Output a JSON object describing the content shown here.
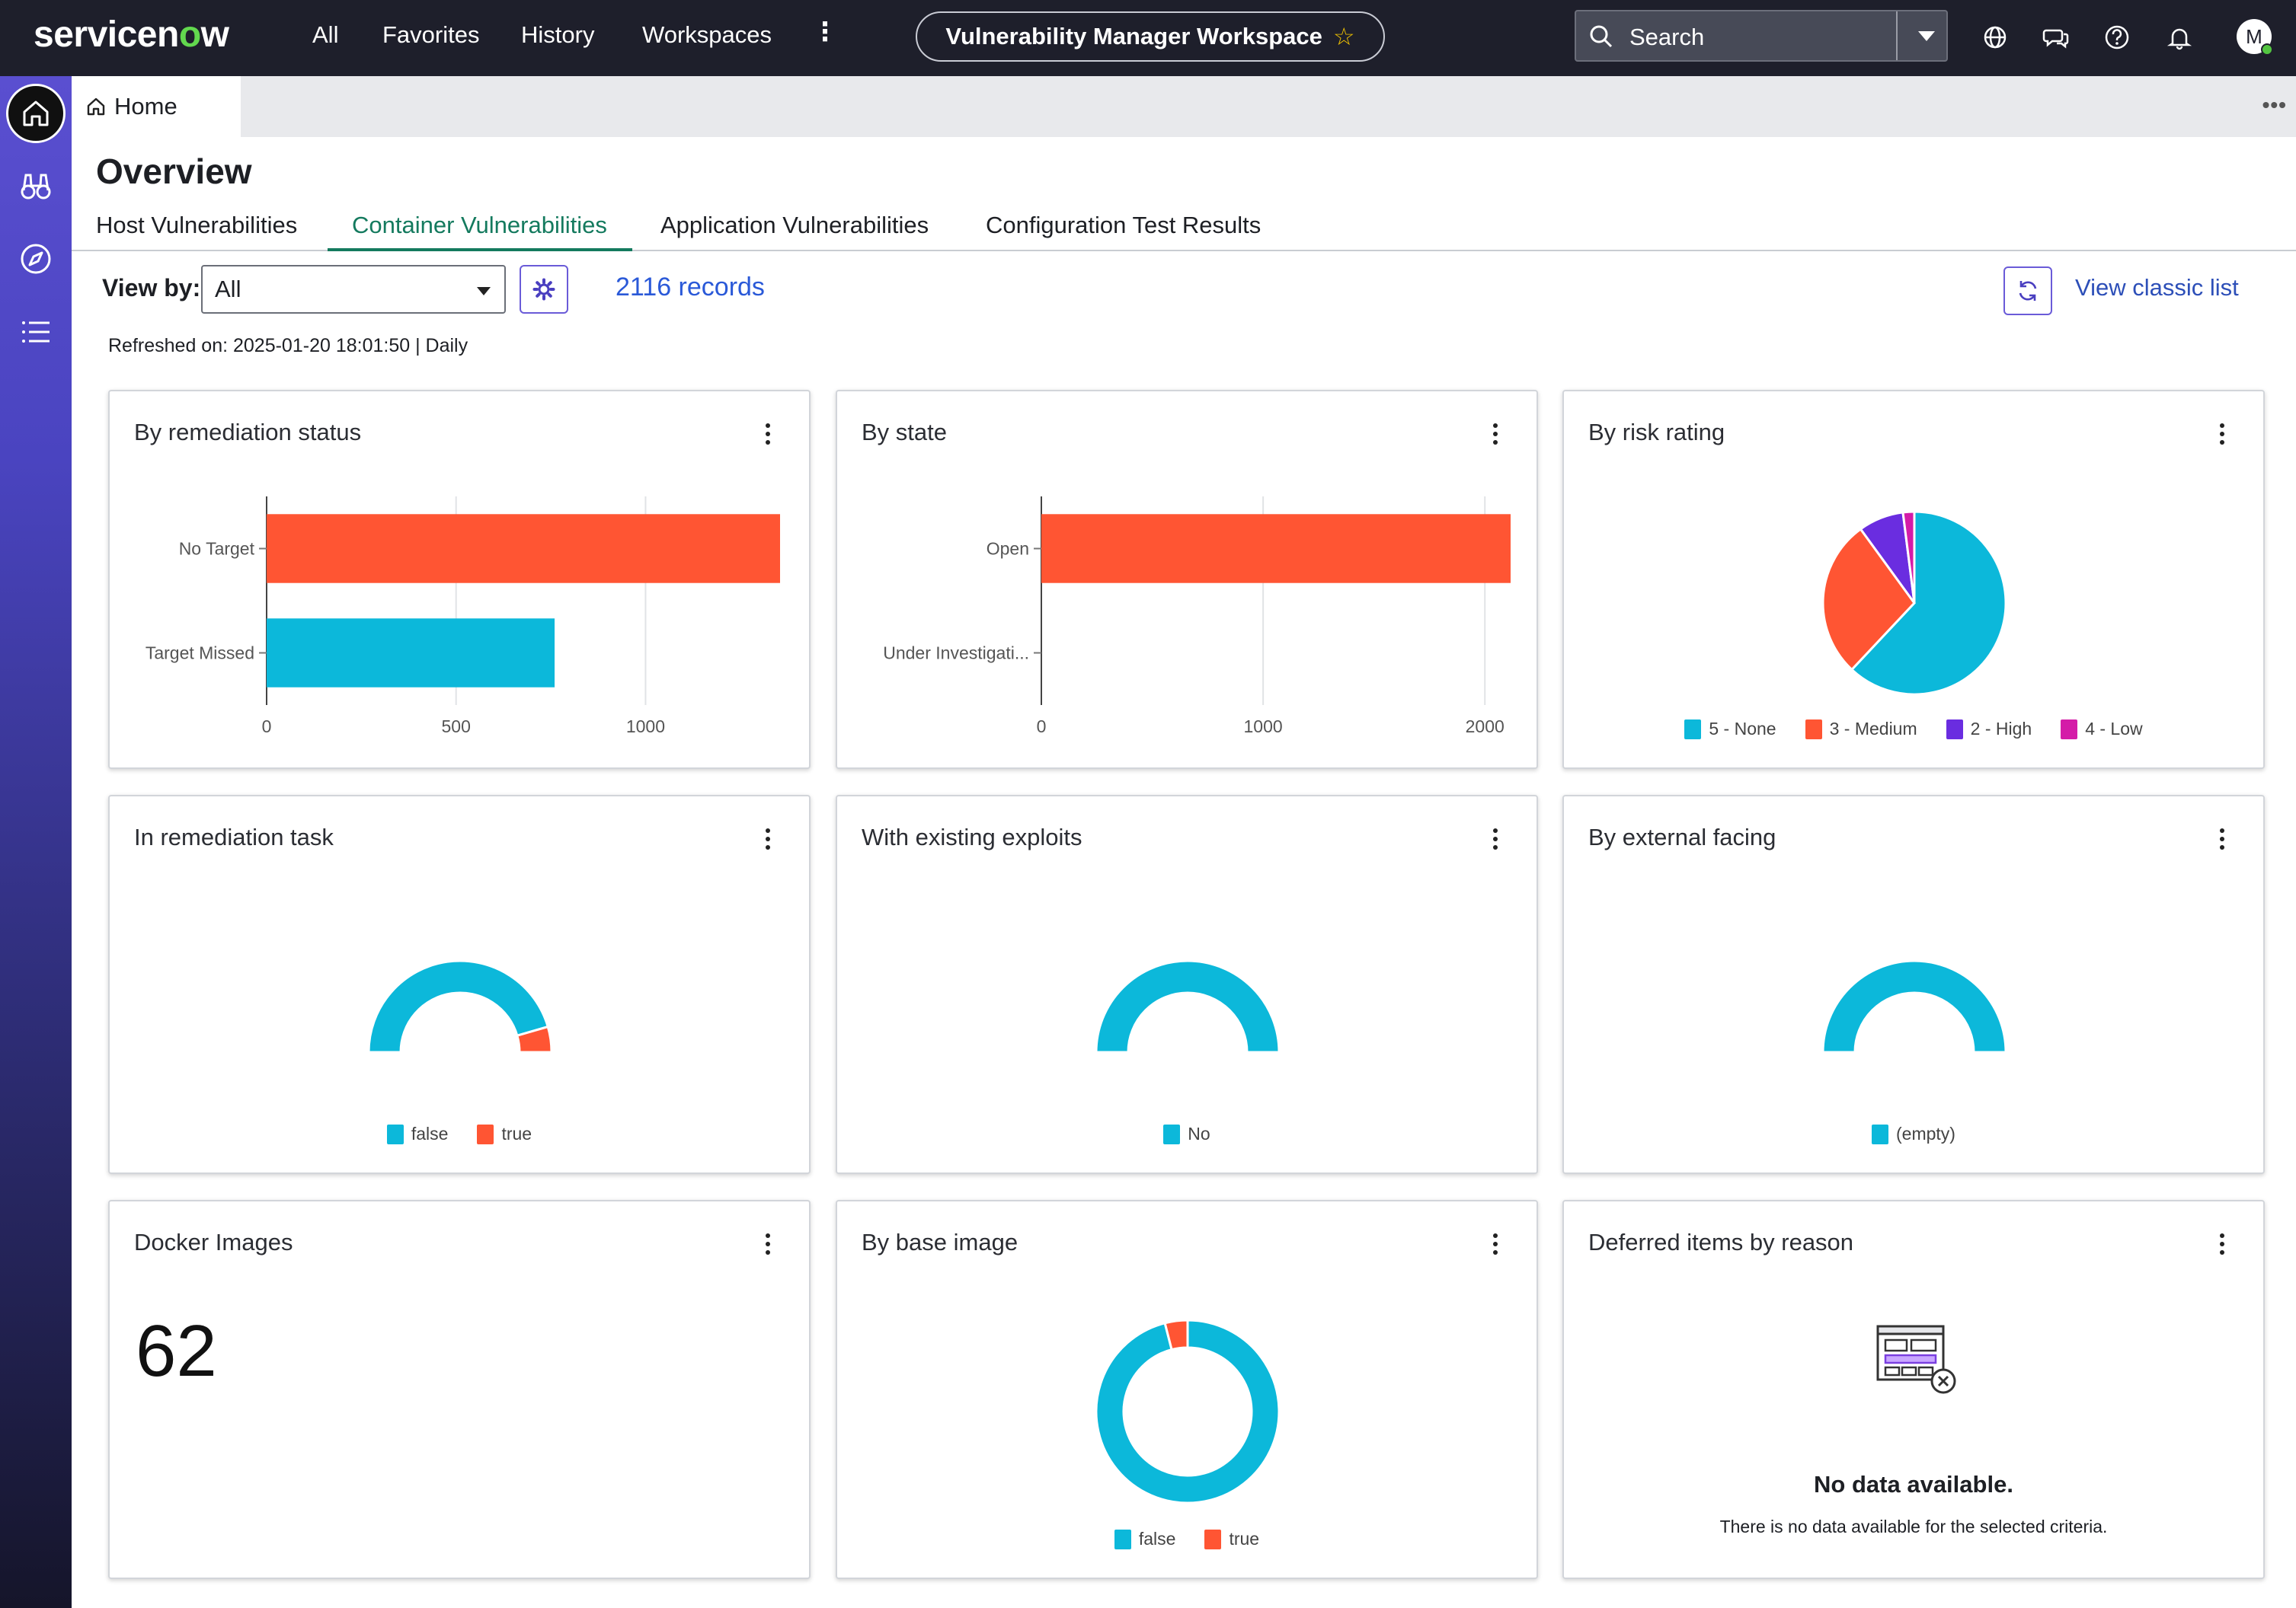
{
  "header": {
    "logo_text_a": "servicen",
    "logo_text_o": "o",
    "logo_text_b": "w",
    "nav": [
      "All",
      "Favorites",
      "History",
      "Workspaces"
    ],
    "nav_more": "⋮",
    "workspace_title": "Vulnerability Manager Workspace",
    "workspace_star": "☆",
    "search_placeholder": "Search",
    "avatar_initial": "M",
    "icons": [
      "globe-icon",
      "chat-icon",
      "help-icon",
      "bell-icon"
    ]
  },
  "tabstrip": {
    "home_label": "Home",
    "more": "•••"
  },
  "page": {
    "title": "Overview",
    "tabs": [
      "Host Vulnerabilities",
      "Container Vulnerabilities",
      "Application Vulnerabilities",
      "Configuration Test Results"
    ],
    "active_tab": "Container Vulnerabilities",
    "view_by_label": "View by:",
    "view_by_value": "All",
    "records": "2116 records",
    "view_classic": "View classic list",
    "refreshed": "Refreshed on: 2025-01-20 18:01:50 | Daily"
  },
  "colors": {
    "orange": "#ff5533",
    "cyan": "#0cb8da",
    "purple": "#6a2de0",
    "magenta": "#d41ca8",
    "accent_green": "#147a5e"
  },
  "cards": {
    "remediation_status": {
      "title": "By remediation status"
    },
    "state": {
      "title": "By state"
    },
    "risk_rating": {
      "title": "By risk rating"
    },
    "remediation_task": {
      "title": "In remediation task"
    },
    "existing_exploits": {
      "title": "With existing exploits"
    },
    "external_facing": {
      "title": "By external facing"
    },
    "docker_images": {
      "title": "Docker Images",
      "value": "62"
    },
    "base_image": {
      "title": "By base image"
    },
    "deferred": {
      "title": "Deferred items by reason",
      "nodata_title": "No data available.",
      "nodata_sub": "There is no data available for the selected criteria."
    }
  },
  "chart_data": [
    {
      "id": "remediation_status",
      "type": "bar",
      "orientation": "horizontal",
      "categories": [
        "No Target",
        "Target Missed"
      ],
      "values": [
        1355,
        760
      ],
      "colors": [
        "#ff5533",
        "#0cb8da"
      ],
      "xlim": [
        0,
        1355
      ],
      "xticks": [
        0,
        500,
        1000
      ],
      "grid": true
    },
    {
      "id": "state",
      "type": "bar",
      "orientation": "horizontal",
      "categories": [
        "Open",
        "Under Investigati..."
      ],
      "values": [
        2116,
        0
      ],
      "colors": [
        "#ff5533",
        "#0cb8da"
      ],
      "xlim": [
        0,
        2116
      ],
      "xticks": [
        0,
        1000,
        2000
      ],
      "grid": true
    },
    {
      "id": "risk_rating",
      "type": "pie",
      "labels": [
        "5 - None",
        "3 - Medium",
        "2 - High",
        "4 - Low"
      ],
      "values": [
        62,
        28,
        8,
        2
      ],
      "colors": [
        "#0cb8da",
        "#ff5533",
        "#6a2de0",
        "#d41ca8"
      ],
      "legend": "bottom"
    },
    {
      "id": "remediation_task",
      "type": "pie",
      "style": "semi-donut",
      "labels": [
        "false",
        "true"
      ],
      "values": [
        91,
        9
      ],
      "colors": [
        "#0cb8da",
        "#ff5533"
      ],
      "legend": "bottom"
    },
    {
      "id": "existing_exploits",
      "type": "pie",
      "style": "semi-donut",
      "labels": [
        "No"
      ],
      "values": [
        100
      ],
      "colors": [
        "#0cb8da"
      ],
      "legend": "bottom"
    },
    {
      "id": "external_facing",
      "type": "pie",
      "style": "semi-donut",
      "labels": [
        "(empty)"
      ],
      "values": [
        100
      ],
      "colors": [
        "#0cb8da"
      ],
      "legend": "bottom"
    },
    {
      "id": "base_image",
      "type": "pie",
      "style": "donut",
      "labels": [
        "false",
        "true"
      ],
      "values": [
        96,
        4
      ],
      "colors": [
        "#0cb8da",
        "#ff5533"
      ],
      "legend": "bottom"
    }
  ]
}
